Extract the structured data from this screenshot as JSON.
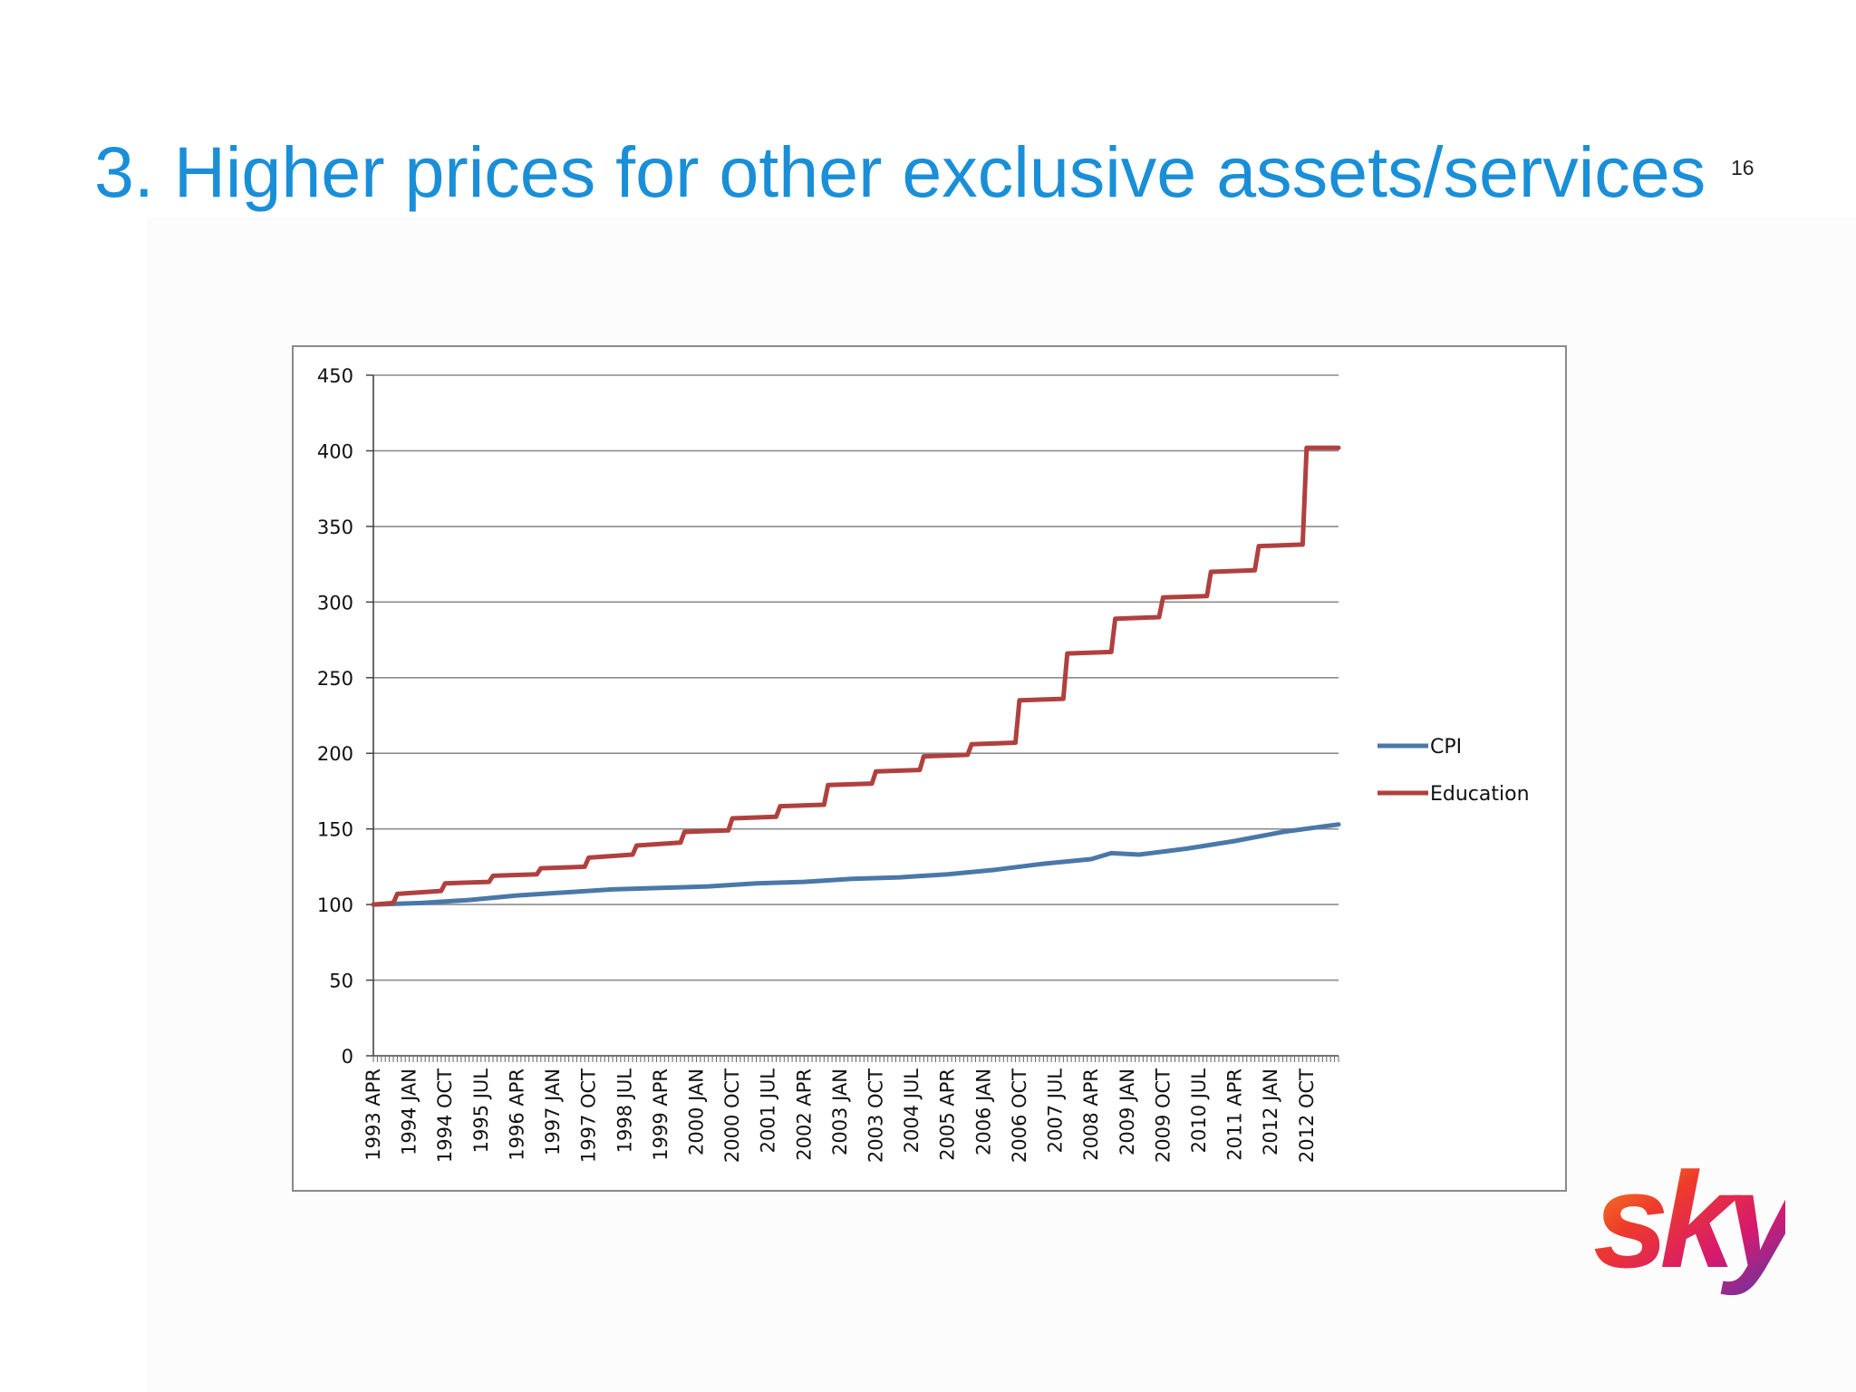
{
  "slide": {
    "title": "3. Higher prices for other exclusive assets/services",
    "slide_number": "16",
    "logo_text": "sky"
  },
  "colors": {
    "title": "#1a8fd8",
    "cpi": "#4a78a8",
    "education": "#b0403e",
    "grid": "#8c8c8c"
  },
  "chart_data": {
    "type": "line",
    "title": "",
    "xlabel": "",
    "ylabel": "",
    "ylim": [
      0,
      450
    ],
    "yticks": [
      0,
      50,
      100,
      150,
      200,
      250,
      300,
      350,
      400,
      450
    ],
    "x_range": [
      "1993 APR",
      "2013 JUN"
    ],
    "x_tick_labels": [
      "1993 APR",
      "1994 JAN",
      "1994 OCT",
      "1995 JUL",
      "1996 APR",
      "1997 JAN",
      "1997 OCT",
      "1998 JUL",
      "1999 APR",
      "2000 JAN",
      "2000 OCT",
      "2001 JUL",
      "2002 APR",
      "2003 JAN",
      "2003 OCT",
      "2004 JUL",
      "2005 APR",
      "2006 JAN",
      "2006 OCT",
      "2007 JUL",
      "2008 APR",
      "2009 JAN",
      "2009 OCT",
      "2010 JUL",
      "2011 APR",
      "2012 JAN",
      "2012 OCT"
    ],
    "grid": true,
    "legend_position": "right",
    "series": [
      {
        "name": "CPI",
        "color": "#4a78a8",
        "points": [
          [
            "1993 APR",
            100
          ],
          [
            "1994 APR",
            101
          ],
          [
            "1995 APR",
            103
          ],
          [
            "1996 APR",
            106
          ],
          [
            "1997 APR",
            108
          ],
          [
            "1998 APR",
            110
          ],
          [
            "1999 APR",
            111
          ],
          [
            "2000 APR",
            112
          ],
          [
            "2001 APR",
            114
          ],
          [
            "2002 APR",
            115
          ],
          [
            "2003 APR",
            117
          ],
          [
            "2004 APR",
            118
          ],
          [
            "2005 APR",
            120
          ],
          [
            "2006 APR",
            123
          ],
          [
            "2007 APR",
            127
          ],
          [
            "2008 APR",
            130
          ],
          [
            "2008 SEP",
            134
          ],
          [
            "2009 APR",
            133
          ],
          [
            "2010 APR",
            137
          ],
          [
            "2011 APR",
            142
          ],
          [
            "2012 APR",
            148
          ],
          [
            "2013 JUN",
            153
          ]
        ]
      },
      {
        "name": "Education",
        "color": "#b0403e",
        "points": [
          [
            "1993 APR",
            100
          ],
          [
            "1993 SEP",
            101
          ],
          [
            "1993 OCT",
            107
          ],
          [
            "1994 SEP",
            109
          ],
          [
            "1994 OCT",
            114
          ],
          [
            "1995 SEP",
            115
          ],
          [
            "1995 OCT",
            119
          ],
          [
            "1996 SEP",
            120
          ],
          [
            "1996 OCT",
            124
          ],
          [
            "1997 SEP",
            125
          ],
          [
            "1997 OCT",
            131
          ],
          [
            "1998 SEP",
            133
          ],
          [
            "1998 OCT",
            139
          ],
          [
            "1999 SEP",
            141
          ],
          [
            "1999 OCT",
            148
          ],
          [
            "2000 SEP",
            149
          ],
          [
            "2000 OCT",
            157
          ],
          [
            "2001 SEP",
            158
          ],
          [
            "2001 OCT",
            165
          ],
          [
            "2002 SEP",
            166
          ],
          [
            "2002 OCT",
            179
          ],
          [
            "2003 SEP",
            180
          ],
          [
            "2003 OCT",
            188
          ],
          [
            "2004 SEP",
            189
          ],
          [
            "2004 OCT",
            198
          ],
          [
            "2005 SEP",
            199
          ],
          [
            "2005 OCT",
            206
          ],
          [
            "2006 SEP",
            207
          ],
          [
            "2006 OCT",
            235
          ],
          [
            "2007 SEP",
            236
          ],
          [
            "2007 OCT",
            266
          ],
          [
            "2008 SEP",
            267
          ],
          [
            "2008 OCT",
            289
          ],
          [
            "2009 SEP",
            290
          ],
          [
            "2009 OCT",
            303
          ],
          [
            "2010 SEP",
            304
          ],
          [
            "2010 OCT",
            320
          ],
          [
            "2011 SEP",
            321
          ],
          [
            "2011 OCT",
            337
          ],
          [
            "2012 SEP",
            338
          ],
          [
            "2012 OCT",
            402
          ],
          [
            "2013 JUN",
            402
          ]
        ]
      }
    ]
  }
}
